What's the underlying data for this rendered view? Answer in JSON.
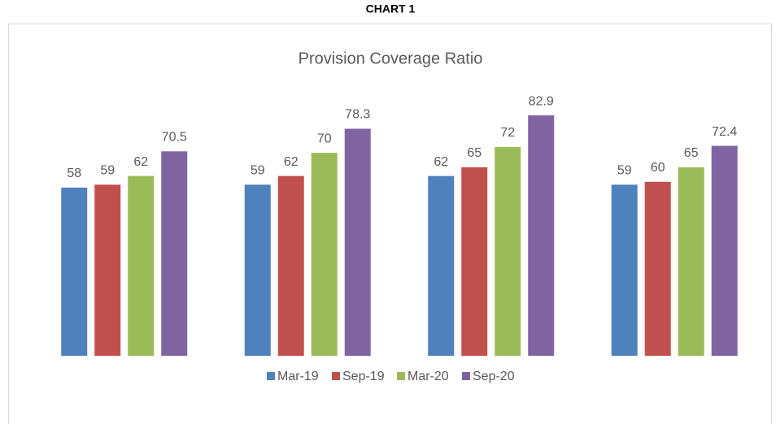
{
  "chart_data": {
    "type": "bar",
    "supertitle": "CHART 1",
    "title": "Provision Coverage Ratio",
    "categories": [
      null,
      null,
      null,
      null
    ],
    "series": [
      {
        "name": "Mar-19",
        "color": "#4f81bd",
        "values": [
          58,
          59,
          62,
          59
        ]
      },
      {
        "name": "Sep-19",
        "color": "#c0504d",
        "values": [
          59,
          62,
          65,
          60
        ]
      },
      {
        "name": "Mar-20",
        "color": "#9bbb59",
        "values": [
          62,
          70,
          72,
          65
        ]
      },
      {
        "name": "Sep-20",
        "color": "#8064a2",
        "values": [
          70.5,
          78.3,
          82.9,
          72.4
        ]
      }
    ],
    "ylim": [
      0,
      100
    ],
    "legend": "bottom"
  }
}
